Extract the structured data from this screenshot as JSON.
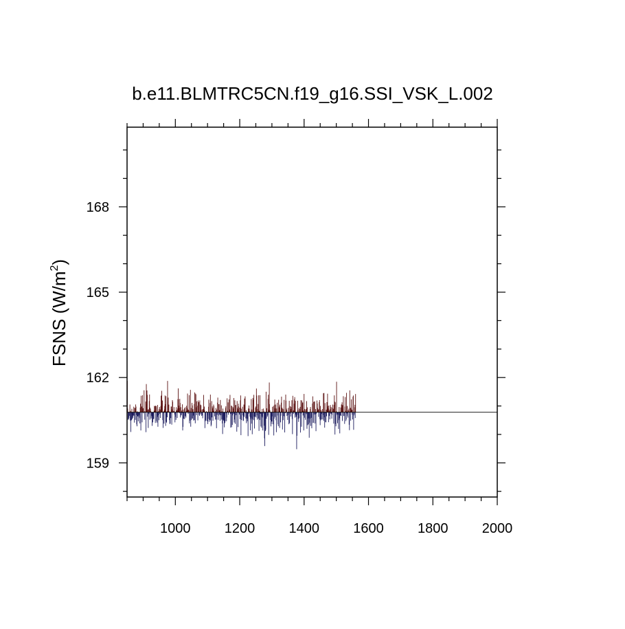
{
  "chart_data": {
    "type": "bar",
    "title": "b.e11.BLMTRC5CN.f19_g16.SSI_VSK_L.002",
    "xlabel": "",
    "ylabel": {
      "base": "FSNS (W/m",
      "sup": "2",
      "close": ")"
    },
    "xlim": [
      850,
      2000
    ],
    "ylim": [
      157.8,
      170.8
    ],
    "x_ticks": [
      "1000",
      "1200",
      "1400",
      "1600",
      "1800",
      "2000"
    ],
    "y_ticks": [
      "159",
      "162",
      "165",
      "168"
    ],
    "reference_value": 160.78,
    "data_range": [
      850,
      1559
    ],
    "colors": {
      "above": "#5a1010",
      "below": "#1a1a5c",
      "reference": "#000000",
      "axis": "#000000"
    },
    "grid": false,
    "legend": "none"
  }
}
